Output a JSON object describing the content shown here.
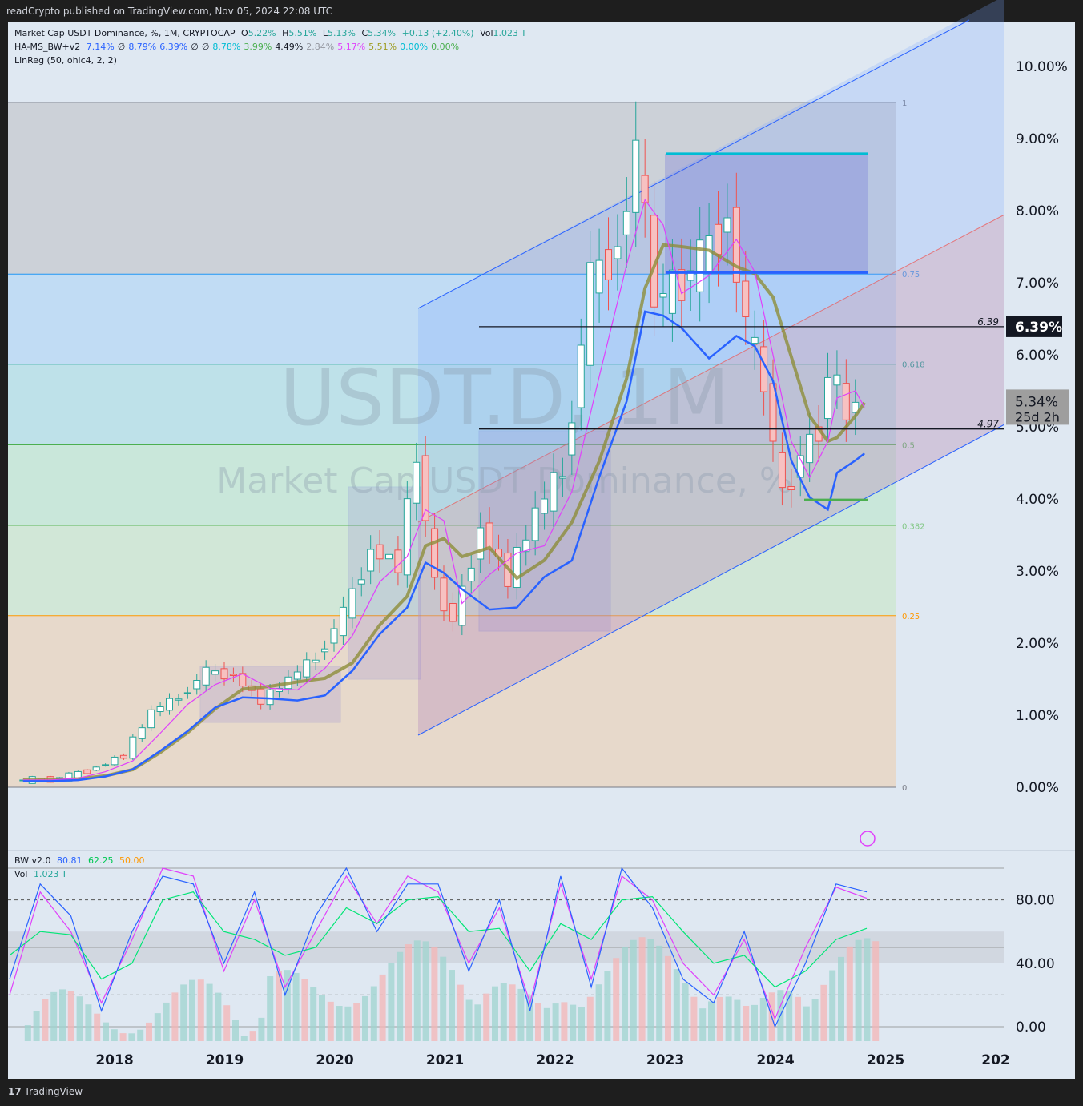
{
  "header": {
    "publish_text": "readCrypto published on TradingView.com, Nov 05, 2024 22:08 UTC"
  },
  "footer": {
    "brand": "TradingView"
  },
  "legend": {
    "main": {
      "symbol": "Market Cap USDT Dominance, %, 1M, CRYPTOCAP",
      "o_label": "O",
      "o": "5.22%",
      "h_label": "H",
      "h": "5.51%",
      "l_label": "L",
      "l": "5.13%",
      "c_label": "C",
      "c": "5.34%",
      "chg": "+0.13 (+2.40%)",
      "vol_label": "Vol",
      "vol": "1.023 T"
    },
    "ha": {
      "name": "HA-MS_BW+v2",
      "values": [
        "7.14%",
        "∅",
        "8.79%",
        "6.39%",
        "∅",
        "∅",
        "8.78%",
        "3.99%",
        "4.49%",
        "2.84%",
        "5.17%",
        "5.51%",
        "0.00%",
        "0.00%"
      ],
      "colors": [
        "#2962ff",
        "#131722",
        "#2962ff",
        "#2962ff",
        "#131722",
        "#131722",
        "#00bcd4",
        "#4caf50",
        "#131722",
        "#9598a1",
        "#e040fb",
        "#9e9d24",
        "#00bcd4",
        "#4caf50"
      ]
    },
    "linreg": "LinReg (50, ohlc4, 2, 2)",
    "bw": {
      "name": "BW v2.0",
      "v1": "80.81",
      "v2": "62.25",
      "v3": "50.00"
    },
    "vol": {
      "name": "Vol",
      "value": "1.023 T"
    }
  },
  "watermark": {
    "symbol": "USDT.D, 1M",
    "name": "Market Cap USDT Dominance, %"
  },
  "colors": {
    "up": "#26a69a",
    "down": "#ef5350",
    "blue": "#2962ff",
    "cyan": "#00bcd4",
    "magenta": "#e040fb",
    "olive": "#8d8d3a",
    "price_label_bg": "#131722"
  },
  "chart_data": [
    {
      "type": "candlestick",
      "y_axis": {
        "unit": "%",
        "range": [
          0,
          10.6
        ],
        "ticks": [
          "0.00%",
          "1.00%",
          "2.00%",
          "3.00%",
          "4.00%",
          "5.00%",
          "6.00%",
          "7.00%",
          "8.00%",
          "9.00%",
          "10.00%"
        ]
      },
      "x_axis": {
        "range": [
          "2017-03",
          "2026-01"
        ],
        "ticks": [
          "2018",
          "2019",
          "2020",
          "2021",
          "2022",
          "2023",
          "2024",
          "2025",
          "202"
        ]
      },
      "fib_levels": [
        {
          "label": "1",
          "value": 9.5,
          "color": "#787b86"
        },
        {
          "label": "0.75",
          "value": 7.12,
          "color": "#2196f3"
        },
        {
          "label": "0.618",
          "value": 5.87,
          "color": "#009688"
        },
        {
          "label": "0.5",
          "value": 4.75,
          "color": "#4caf50"
        },
        {
          "label": "0.382",
          "value": 3.63,
          "color": "#81c784"
        },
        {
          "label": "0.25",
          "value": 2.38,
          "color": "#ff9800"
        },
        {
          "label": "0",
          "value": 0.0,
          "color": "#787b86"
        }
      ],
      "horizontal_lines": [
        {
          "label": "6.39",
          "value": 6.39
        },
        {
          "label": "4.97",
          "value": 4.97
        }
      ],
      "price_labels": [
        {
          "text": "6.39%",
          "value": 6.39
        },
        {
          "text": "5.34%",
          "sub": "25d 2h",
          "value": 5.34
        }
      ],
      "close_series": [
        {
          "date": "2017-03",
          "close": 0.1
        },
        {
          "date": "2017-06",
          "close": 0.1
        },
        {
          "date": "2017-09",
          "close": 0.15
        },
        {
          "date": "2017-12",
          "close": 0.28
        },
        {
          "date": "2018-03",
          "close": 0.45
        },
        {
          "date": "2018-06",
          "close": 1.05
        },
        {
          "date": "2018-09",
          "close": 1.25
        },
        {
          "date": "2018-12",
          "close": 1.6
        },
        {
          "date": "2019-03",
          "close": 1.55
        },
        {
          "date": "2019-06",
          "close": 1.2
        },
        {
          "date": "2019-09",
          "close": 1.5
        },
        {
          "date": "2019-12",
          "close": 1.8
        },
        {
          "date": "2020-03",
          "close": 2.4
        },
        {
          "date": "2020-06",
          "close": 3.3
        },
        {
          "date": "2020-09",
          "close": 3.1
        },
        {
          "date": "2020-11",
          "close": 4.6
        },
        {
          "date": "2021-01",
          "close": 2.8
        },
        {
          "date": "2021-03",
          "close": 2.3
        },
        {
          "date": "2021-06",
          "close": 3.6
        },
        {
          "date": "2021-09",
          "close": 2.9
        },
        {
          "date": "2021-12",
          "close": 3.8
        },
        {
          "date": "2022-03",
          "close": 4.4
        },
        {
          "date": "2022-06",
          "close": 7.0
        },
        {
          "date": "2022-09",
          "close": 7.5
        },
        {
          "date": "2022-11",
          "close": 8.8
        },
        {
          "date": "2023-01",
          "close": 6.8
        },
        {
          "date": "2023-03",
          "close": 6.9
        },
        {
          "date": "2023-06",
          "close": 7.3
        },
        {
          "date": "2023-09",
          "close": 7.9
        },
        {
          "date": "2023-11",
          "close": 6.4
        },
        {
          "date": "2024-01",
          "close": 5.6
        },
        {
          "date": "2024-03",
          "close": 4.0
        },
        {
          "date": "2024-05",
          "close": 4.6
        },
        {
          "date": "2024-07",
          "close": 5.0
        },
        {
          "date": "2024-08",
          "close": 5.8
        },
        {
          "date": "2024-10",
          "close": 5.2
        },
        {
          "date": "2024-11",
          "close": 5.34
        }
      ]
    },
    {
      "type": "line",
      "title": "BW v2.0",
      "y_axis": {
        "range": [
          0,
          100
        ],
        "ticks": [
          "0.00",
          "40.00",
          "80.00"
        ]
      },
      "series": [
        {
          "color": "#e040fb",
          "values": [
            20,
            85,
            60,
            15,
            55,
            100,
            95,
            35,
            80,
            25,
            60,
            95,
            65,
            95,
            85,
            40,
            75,
            15,
            90,
            30,
            95,
            80,
            40,
            20,
            55,
            5,
            50,
            88,
            81
          ]
        },
        {
          "color": "#00e676",
          "values": [
            45,
            60,
            58,
            30,
            40,
            80,
            85,
            60,
            55,
            45,
            50,
            75,
            65,
            80,
            82,
            60,
            62,
            35,
            65,
            55,
            80,
            82,
            60,
            40,
            45,
            25,
            35,
            55,
            62
          ]
        },
        {
          "color": "#2962ff",
          "values": [
            30,
            90,
            70,
            10,
            60,
            95,
            90,
            40,
            85,
            20,
            70,
            100,
            60,
            90,
            90,
            35,
            80,
            10,
            95,
            25,
            100,
            75,
            30,
            15,
            60,
            0,
            40,
            90,
            85
          ]
        }
      ]
    }
  ]
}
